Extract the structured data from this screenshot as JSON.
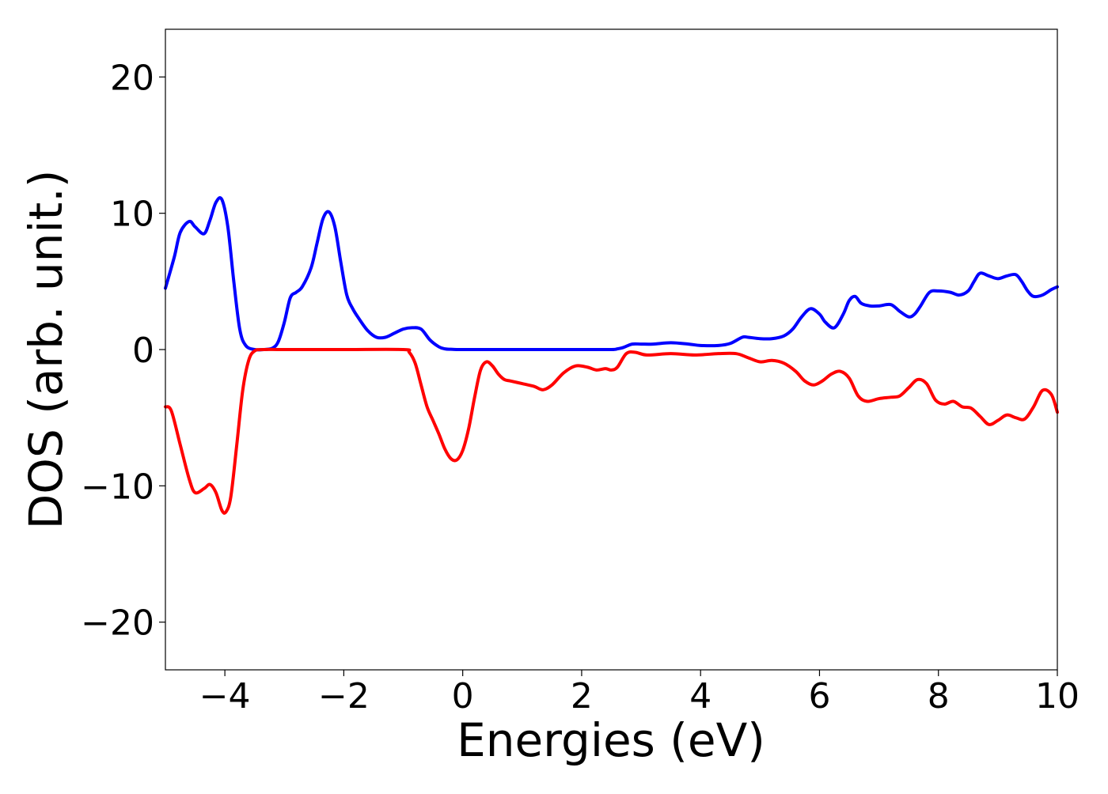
{
  "chart_data": {
    "type": "line",
    "title": "",
    "xlabel": "Energies (eV)",
    "ylabel": "DOS (arb. unit.)",
    "xlim": [
      -5,
      10
    ],
    "ylim": [
      -23.5,
      23.5
    ],
    "xticks": [
      -4,
      -2,
      0,
      2,
      4,
      6,
      8,
      10
    ],
    "xtick_labels": [
      "−4",
      "−2",
      "0",
      "2",
      "4",
      "6",
      "8",
      "10"
    ],
    "yticks": [
      -20,
      -10,
      0,
      10,
      20
    ],
    "ytick_labels": [
      "−20",
      "−10",
      "0",
      "10",
      "20"
    ],
    "grid": false,
    "legend": "none",
    "series": [
      {
        "color": "#0000ff",
        "x": [
          -5.0,
          -4.85,
          -4.75,
          -4.6,
          -4.5,
          -4.35,
          -4.25,
          -4.15,
          -4.05,
          -3.95,
          -3.85,
          -3.75,
          -3.65,
          -3.5,
          -3.35,
          -3.2,
          -3.1,
          -3.0,
          -2.9,
          -2.8,
          -2.7,
          -2.55,
          -2.45,
          -2.35,
          -2.25,
          -2.15,
          -2.05,
          -1.95,
          -1.85,
          -1.75,
          -1.6,
          -1.45,
          -1.3,
          -1.15,
          -1.0,
          -0.85,
          -0.7,
          -0.55,
          -0.4,
          -0.3,
          -0.2,
          -0.1,
          0.0,
          0.5,
          1.0,
          1.5,
          2.0,
          2.5,
          2.6,
          2.7,
          2.85,
          3.0,
          3.2,
          3.5,
          3.8,
          4.0,
          4.3,
          4.5,
          4.7,
          4.8,
          5.0,
          5.2,
          5.4,
          5.55,
          5.7,
          5.85,
          6.0,
          6.1,
          6.25,
          6.4,
          6.5,
          6.6,
          6.7,
          6.85,
          7.0,
          7.2,
          7.35,
          7.5,
          7.6,
          7.7,
          7.85,
          8.0,
          8.2,
          8.35,
          8.5,
          8.6,
          8.7,
          8.85,
          9.0,
          9.15,
          9.3,
          9.4,
          9.5,
          9.6,
          9.75,
          9.9,
          10.0
        ],
        "y": [
          4.5,
          6.8,
          8.6,
          9.4,
          9.0,
          8.5,
          9.5,
          10.8,
          11.0,
          9.0,
          5.0,
          1.5,
          0.3,
          0.0,
          0.0,
          0.1,
          0.6,
          2.0,
          3.8,
          4.2,
          4.6,
          6.0,
          7.8,
          9.6,
          10.1,
          9.0,
          6.4,
          4.0,
          3.0,
          2.3,
          1.4,
          0.9,
          0.9,
          1.2,
          1.5,
          1.6,
          1.5,
          0.7,
          0.2,
          0.05,
          0.02,
          0.0,
          0.0,
          0.0,
          0.0,
          0.0,
          0.0,
          0.0,
          0.05,
          0.15,
          0.4,
          0.4,
          0.4,
          0.5,
          0.4,
          0.3,
          0.3,
          0.45,
          0.9,
          0.9,
          0.8,
          0.8,
          1.0,
          1.5,
          2.4,
          3.0,
          2.6,
          2.0,
          1.6,
          2.6,
          3.6,
          3.9,
          3.4,
          3.2,
          3.2,
          3.3,
          2.8,
          2.4,
          2.6,
          3.2,
          4.2,
          4.3,
          4.2,
          4.0,
          4.3,
          5.0,
          5.6,
          5.4,
          5.2,
          5.4,
          5.5,
          5.0,
          4.3,
          3.9,
          4.0,
          4.4,
          4.6
        ]
      },
      {
        "color": "#ff0000",
        "x": [
          -5.0,
          -4.9,
          -4.75,
          -4.6,
          -4.5,
          -4.35,
          -4.25,
          -4.15,
          -4.05,
          -3.98,
          -3.9,
          -3.8,
          -3.7,
          -3.6,
          -3.5,
          -3.35,
          -3.0,
          -2.0,
          -1.0,
          -0.9,
          -0.8,
          -0.7,
          -0.6,
          -0.5,
          -0.4,
          -0.3,
          -0.2,
          -0.1,
          0.0,
          0.1,
          0.2,
          0.3,
          0.4,
          0.5,
          0.6,
          0.7,
          0.8,
          1.0,
          1.2,
          1.35,
          1.5,
          1.7,
          1.9,
          2.1,
          2.25,
          2.4,
          2.5,
          2.6,
          2.75,
          2.9,
          3.1,
          3.5,
          3.9,
          4.3,
          4.6,
          4.8,
          5.0,
          5.2,
          5.4,
          5.6,
          5.75,
          5.9,
          6.05,
          6.2,
          6.35,
          6.5,
          6.65,
          6.8,
          7.0,
          7.2,
          7.35,
          7.5,
          7.65,
          7.8,
          7.95,
          8.1,
          8.25,
          8.4,
          8.55,
          8.7,
          8.85,
          9.0,
          9.15,
          9.3,
          9.45,
          9.6,
          9.75,
          9.9,
          10.0
        ],
        "y": [
          -4.2,
          -4.5,
          -7.0,
          -9.5,
          -10.5,
          -10.2,
          -9.9,
          -10.5,
          -11.8,
          -11.9,
          -10.8,
          -7.0,
          -3.0,
          -0.8,
          -0.1,
          0.0,
          0.0,
          0.0,
          0.0,
          -0.2,
          -1.0,
          -2.6,
          -4.2,
          -5.2,
          -6.2,
          -7.3,
          -8.0,
          -8.1,
          -7.4,
          -5.8,
          -3.5,
          -1.5,
          -0.9,
          -1.2,
          -1.8,
          -2.2,
          -2.3,
          -2.5,
          -2.7,
          -2.95,
          -2.6,
          -1.7,
          -1.2,
          -1.3,
          -1.5,
          -1.4,
          -1.5,
          -1.3,
          -0.3,
          -0.2,
          -0.4,
          -0.3,
          -0.4,
          -0.3,
          -0.3,
          -0.6,
          -0.9,
          -0.8,
          -1.0,
          -1.6,
          -2.3,
          -2.6,
          -2.3,
          -1.8,
          -1.6,
          -2.1,
          -3.4,
          -3.8,
          -3.6,
          -3.5,
          -3.4,
          -2.8,
          -2.2,
          -2.5,
          -3.7,
          -4.0,
          -3.8,
          -4.2,
          -4.3,
          -4.9,
          -5.5,
          -5.2,
          -4.8,
          -5.0,
          -5.1,
          -4.2,
          -3.0,
          -3.3,
          -4.6
        ]
      }
    ]
  }
}
